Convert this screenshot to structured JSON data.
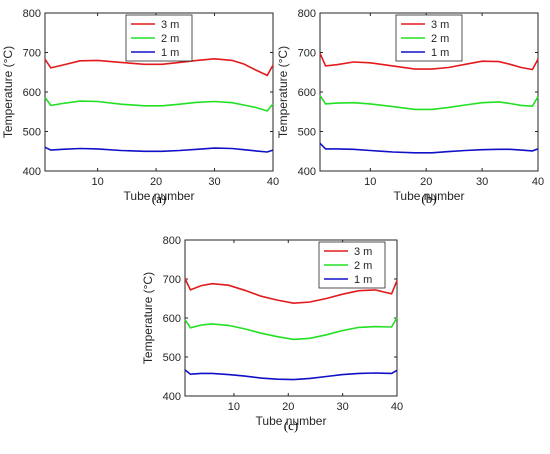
{
  "colors": {
    "red": "#e31a1c",
    "green": "#22e022",
    "blue": "#1010c8",
    "axis": "#262626"
  },
  "chart_data": [
    {
      "type": "line",
      "panel_label": "(a)",
      "xlabel": "Tube number",
      "ylabel": "Temperature (°C)",
      "xlim": [
        1,
        40
      ],
      "ylim": [
        400,
        800
      ],
      "xticks": [
        10,
        20,
        30,
        40
      ],
      "yticks": [
        400,
        500,
        600,
        700,
        800
      ],
      "legend_position": "top-center",
      "grid": false,
      "series": [
        {
          "name": "3 m",
          "color": "#e31a1c",
          "x": [
            1,
            2,
            4,
            7,
            10,
            14,
            18,
            21,
            24,
            27,
            30,
            33,
            35,
            37,
            39,
            40
          ],
          "values": [
            683,
            661,
            668,
            679,
            680,
            675,
            670,
            670,
            675,
            680,
            684,
            680,
            671,
            656,
            642,
            668
          ]
        },
        {
          "name": "2 m",
          "color": "#22e022",
          "x": [
            1,
            2,
            4,
            7,
            10,
            14,
            18,
            21,
            24,
            27,
            30,
            33,
            35,
            37,
            39,
            40
          ],
          "values": [
            586,
            566,
            571,
            577,
            576,
            569,
            565,
            565,
            569,
            574,
            576,
            573,
            567,
            561,
            552,
            570
          ]
        },
        {
          "name": "1 m",
          "color": "#1010c8",
          "x": [
            1,
            2,
            4,
            7,
            10,
            14,
            18,
            21,
            24,
            27,
            30,
            33,
            35,
            37,
            39,
            40
          ],
          "values": [
            460,
            453,
            455,
            457,
            456,
            452,
            450,
            450,
            452,
            455,
            458,
            457,
            454,
            451,
            448,
            453
          ]
        }
      ]
    },
    {
      "type": "line",
      "panel_label": "(b)",
      "xlabel": "Tube number",
      "ylabel": "Temperature (°C)",
      "xlim": [
        1,
        40
      ],
      "ylim": [
        400,
        800
      ],
      "xticks": [
        10,
        20,
        30,
        40
      ],
      "yticks": [
        400,
        500,
        600,
        700,
        800
      ],
      "legend_position": "top-center",
      "grid": false,
      "series": [
        {
          "name": "3 m",
          "color": "#e31a1c",
          "x": [
            1,
            2,
            4,
            7,
            10,
            14,
            18,
            21,
            24,
            27,
            30,
            33,
            35,
            37,
            39,
            40
          ],
          "values": [
            698,
            666,
            669,
            676,
            674,
            666,
            658,
            658,
            662,
            670,
            678,
            677,
            670,
            662,
            657,
            683
          ]
        },
        {
          "name": "2 m",
          "color": "#22e022",
          "x": [
            1,
            2,
            4,
            7,
            10,
            14,
            18,
            21,
            24,
            27,
            30,
            33,
            35,
            37,
            39,
            40
          ],
          "values": [
            591,
            570,
            572,
            573,
            570,
            563,
            556,
            556,
            561,
            567,
            573,
            575,
            571,
            566,
            564,
            588
          ]
        },
        {
          "name": "1 m",
          "color": "#1010c8",
          "x": [
            1,
            2,
            4,
            7,
            10,
            14,
            18,
            21,
            24,
            27,
            30,
            33,
            35,
            37,
            39,
            40
          ],
          "values": [
            470,
            456,
            456,
            455,
            452,
            448,
            446,
            446,
            449,
            452,
            454,
            455,
            455,
            453,
            451,
            456
          ]
        }
      ]
    },
    {
      "type": "line",
      "panel_label": "(c)",
      "xlabel": "Tube number",
      "ylabel": "Temperature (°C)",
      "xlim": [
        1,
        40
      ],
      "ylim": [
        400,
        800
      ],
      "xticks": [
        10,
        20,
        30,
        40
      ],
      "yticks": [
        400,
        500,
        600,
        700,
        800
      ],
      "legend_position": "top-right",
      "grid": false,
      "series": [
        {
          "name": "3 m",
          "color": "#e31a1c",
          "x": [
            1,
            2,
            4,
            6,
            9,
            12,
            15,
            18,
            21,
            24,
            27,
            30,
            33,
            36,
            39,
            40
          ],
          "values": [
            701,
            672,
            683,
            688,
            684,
            671,
            656,
            646,
            638,
            641,
            650,
            661,
            670,
            672,
            662,
            696
          ]
        },
        {
          "name": "2 m",
          "color": "#22e022",
          "x": [
            1,
            2,
            4,
            6,
            9,
            12,
            15,
            18,
            21,
            24,
            27,
            30,
            33,
            36,
            39,
            40
          ],
          "values": [
            596,
            575,
            582,
            585,
            581,
            572,
            561,
            552,
            545,
            548,
            557,
            568,
            576,
            578,
            577,
            601
          ]
        },
        {
          "name": "1 m",
          "color": "#1010c8",
          "x": [
            1,
            2,
            4,
            6,
            9,
            12,
            15,
            18,
            21,
            24,
            27,
            30,
            33,
            36,
            39,
            40
          ],
          "values": [
            467,
            456,
            458,
            458,
            455,
            451,
            446,
            443,
            442,
            445,
            450,
            455,
            458,
            459,
            458,
            466
          ]
        }
      ]
    }
  ]
}
